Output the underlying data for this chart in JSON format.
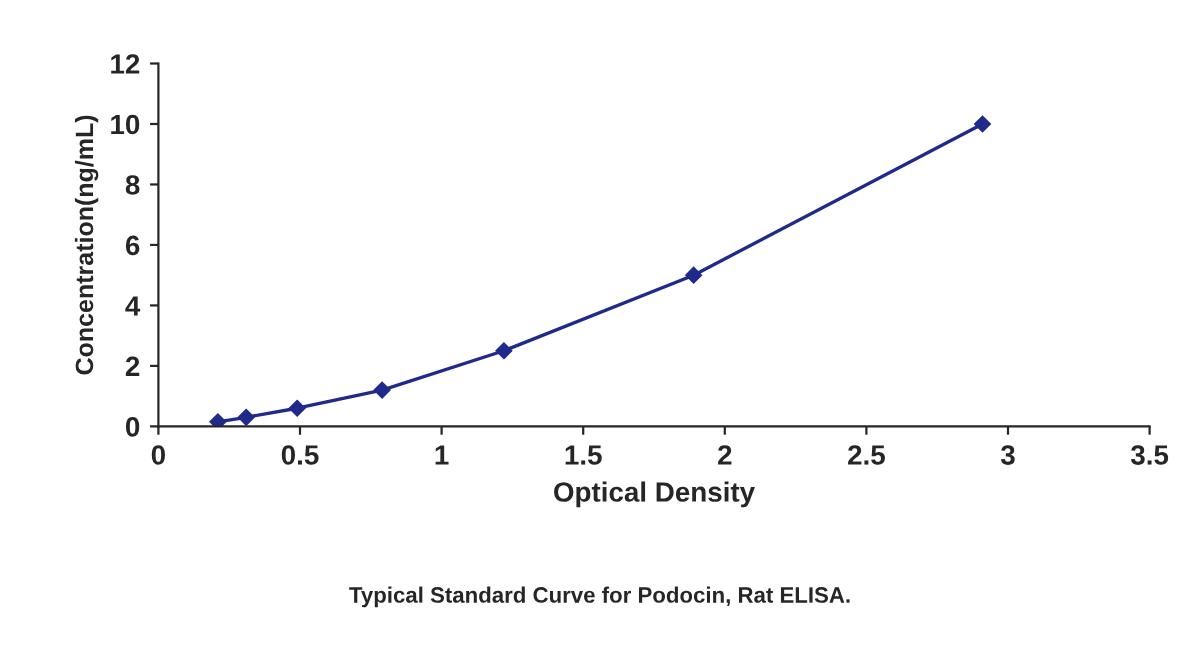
{
  "chart_data": {
    "type": "line",
    "xlabel": "Optical Density",
    "ylabel": "Concentration(ng/mL)",
    "x": [
      0.21,
      0.31,
      0.49,
      0.79,
      1.22,
      1.89,
      2.91
    ],
    "series": [
      {
        "color": "#1f2a8a",
        "values": [
          0.15,
          0.3,
          0.6,
          1.2,
          2.5,
          5,
          10
        ]
      }
    ],
    "xlim": [
      0,
      3.5
    ],
    "xticks": [
      0,
      0.5,
      1,
      1.5,
      2,
      2.5,
      3,
      3.5
    ],
    "ylim": [
      0,
      12
    ],
    "yticks": [
      0,
      2,
      4,
      6,
      8,
      10,
      12
    ],
    "marker": "diamond",
    "line_style": "solid",
    "grid": false,
    "legend": false,
    "annotations": [
      "Typical Standard Curve for Podocin, Rat ELISA."
    ]
  }
}
